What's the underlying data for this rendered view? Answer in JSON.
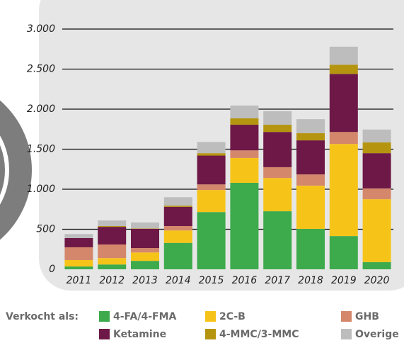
{
  "chart_data": {
    "type": "bar",
    "stacked": true,
    "categories": [
      "2011",
      "2012",
      "2013",
      "2014",
      "2015",
      "2016",
      "2017",
      "2018",
      "2019",
      "2020"
    ],
    "series": [
      {
        "name": "4-FA/4-FMA",
        "color": "#3daa4c",
        "values": [
          35,
          60,
          105,
          330,
          715,
          1080,
          725,
          505,
          415,
          90
        ]
      },
      {
        "name": "2C-B",
        "color": "#f6c419",
        "values": [
          80,
          80,
          105,
          155,
          275,
          310,
          415,
          540,
          1150,
          785
        ]
      },
      {
        "name": "GHB",
        "color": "#d5876c",
        "values": [
          160,
          170,
          55,
          55,
          70,
          95,
          135,
          140,
          150,
          135
        ]
      },
      {
        "name": "Ketamine",
        "color": "#6d1846",
        "values": [
          115,
          220,
          240,
          240,
          360,
          320,
          440,
          425,
          725,
          440
        ]
      },
      {
        "name": "4-MMC/3-MMC",
        "color": "#b5950f",
        "values": [
          0,
          10,
          5,
          15,
          30,
          80,
          90,
          90,
          115,
          135
        ]
      },
      {
        "name": "Overige",
        "color": "#bdbdbe",
        "values": [
          50,
          70,
          75,
          105,
          140,
          160,
          170,
          175,
          225,
          160
        ]
      }
    ],
    "ylim": [
      0,
      3000
    ],
    "yticks": [
      0,
      {
        "value": 500,
        "label": "500"
      },
      {
        "value": 1000,
        "label": "1.000"
      },
      {
        "value": 1500,
        "label": "1.500"
      },
      {
        "value": 2000,
        "label": "2.000"
      },
      {
        "value": 2500,
        "label": "2.500"
      },
      {
        "value": 3000,
        "label": "3.000"
      }
    ],
    "grid": true,
    "legend_title": "Verkocht als:",
    "legend": "bottom"
  }
}
